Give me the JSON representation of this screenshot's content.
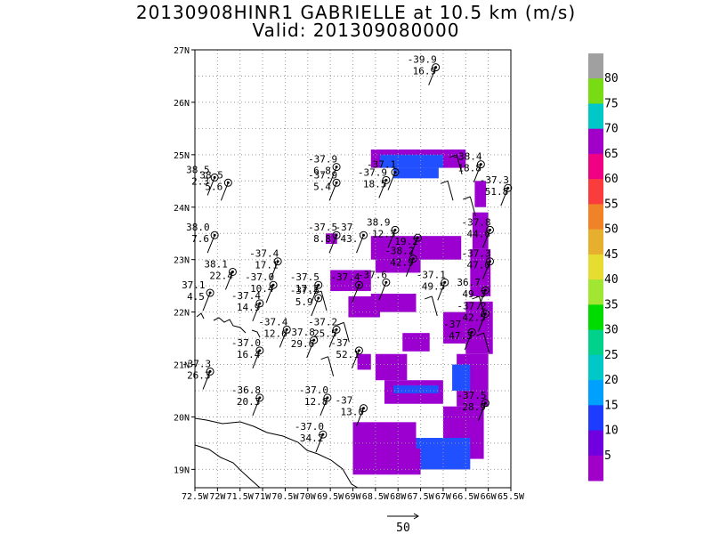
{
  "title": "20130908HINR1 GABRIELLE at 10.5 km (m/s)",
  "valid": "Valid: 201309080000",
  "lat_labels": [
    "27N",
    "26N",
    "25N",
    "24N",
    "23N",
    "22N",
    "21N",
    "20N",
    "19N"
  ],
  "lon_labels": [
    "72.5W",
    "72W",
    "71.5W",
    "71W",
    "70.5W",
    "70W",
    "69.5W",
    "69W",
    "68.5W",
    "68W",
    "67.5W",
    "67W",
    "66.5W",
    "66W",
    "65.5W"
  ],
  "colorbar": {
    "labels": [
      "5",
      "10",
      "15",
      "20",
      "25",
      "30",
      "35",
      "40",
      "45",
      "50",
      "55",
      "60",
      "65",
      "70",
      "75",
      "80"
    ],
    "colors": [
      "#a000c8",
      "#7000e0",
      "#1e3cff",
      "#00a0ff",
      "#00c8c8",
      "#00d28c",
      "#00dc00",
      "#a0e632",
      "#e6dc32",
      "#e6af2d",
      "#f08228",
      "#fa3c3c",
      "#f00082",
      "#a000c8",
      "#00c8c8",
      "#78dc14",
      "#a0a0a0"
    ]
  },
  "scale_vector_label": "50",
  "colors": {
    "purple": "#9b00d0",
    "blue": "#2050ff",
    "grid": "#9a9a9a",
    "coast": "#000000"
  },
  "stations": [
    {
      "t": "-39.9",
      "w": "16.9",
      "lon": -67.4,
      "lat": 26.7
    },
    {
      "t": "-37.9",
      "w": "6.8",
      "lon": -69.6,
      "lat": 24.8
    },
    {
      "t": "-37.9",
      "w": "5.4",
      "lon": -69.6,
      "lat": 24.5
    },
    {
      "t": "-37.1",
      "w": "",
      "lon": -68.3,
      "lat": 24.7
    },
    {
      "t": "-37.9",
      "w": "18.5",
      "lon": -68.5,
      "lat": 24.55
    },
    {
      "t": "-38.4",
      "w": "18.8",
      "lon": -66.4,
      "lat": 24.85
    },
    {
      "t": "-37.3",
      "w": "51.8",
      "lon": -65.8,
      "lat": 24.4
    },
    {
      "t": "38.5",
      "w": "2.3",
      "lon": -72.3,
      "lat": 24.6
    },
    {
      "t": "38.5",
      "w": "5.6",
      "lon": -72.0,
      "lat": 24.5
    },
    {
      "t": "38.0",
      "w": "7.6",
      "lon": -72.3,
      "lat": 23.5
    },
    {
      "t": "-37.5",
      "w": "8.8",
      "lon": -69.6,
      "lat": 23.5
    },
    {
      "t": "-37",
      "w": "43.",
      "lon": -69.0,
      "lat": 23.5
    },
    {
      "t": "38.9",
      "w": "12.3",
      "lon": -68.3,
      "lat": 23.6
    },
    {
      "t": "",
      "w": "19.2",
      "lon": -67.8,
      "lat": 23.45
    },
    {
      "t": "-37.8",
      "w": "44.6",
      "lon": -66.2,
      "lat": 23.6
    },
    {
      "t": "-37.4",
      "w": "17.1",
      "lon": -70.9,
      "lat": 23.0
    },
    {
      "t": "-38.2",
      "w": "42.9",
      "lon": -67.9,
      "lat": 23.05
    },
    {
      "t": "-37.3",
      "w": "47.0",
      "lon": -66.2,
      "lat": 23.0
    },
    {
      "t": "38.1",
      "w": "22.4",
      "lon": -71.9,
      "lat": 22.8
    },
    {
      "t": "-37.0",
      "w": "10.4",
      "lon": -71.0,
      "lat": 22.55
    },
    {
      "t": "-37.5",
      "w": "17.2",
      "lon": -70.0,
      "lat": 22.55
    },
    {
      "t": "-37.5",
      "w": "5.9",
      "lon": -70.0,
      "lat": 22.3
    },
    {
      "t": "-37.4",
      "w": "",
      "lon": -69.1,
      "lat": 22.55
    },
    {
      "t": "-37.6",
      "w": "",
      "lon": -68.5,
      "lat": 22.6
    },
    {
      "t": "-37.1",
      "w": "49.5",
      "lon": -67.2,
      "lat": 22.6
    },
    {
      "t": "36.7",
      "w": "49.3",
      "lon": -66.3,
      "lat": 22.45
    },
    {
      "t": "37.1",
      "w": "4.5",
      "lon": -72.4,
      "lat": 22.4
    },
    {
      "t": "-37.4",
      "w": "14.9",
      "lon": -71.3,
      "lat": 22.2
    },
    {
      "t": "-37.2",
      "w": "42.5",
      "lon": -66.3,
      "lat": 22.0
    },
    {
      "t": "-37.4",
      "w": "12.6",
      "lon": -70.7,
      "lat": 21.7
    },
    {
      "t": "-37.2",
      "w": "25.5",
      "lon": -69.6,
      "lat": 21.7
    },
    {
      "t": "-37.8",
      "w": "29.6",
      "lon": -70.1,
      "lat": 21.5
    },
    {
      "t": "-37",
      "w": "47.3",
      "lon": -66.6,
      "lat": 21.65
    },
    {
      "t": "-37.0",
      "w": "16.4",
      "lon": -71.3,
      "lat": 21.3
    },
    {
      "t": "-37",
      "w": "52.1",
      "lon": -69.1,
      "lat": 21.3
    },
    {
      "t": "-37.3",
      "w": "26.3",
      "lon": -72.4,
      "lat": 20.9
    },
    {
      "t": "-36.8",
      "w": "20.3",
      "lon": -71.3,
      "lat": 20.4
    },
    {
      "t": "-37.0",
      "w": "12.8",
      "lon": -69.8,
      "lat": 20.4
    },
    {
      "t": "-37",
      "w": "13.0",
      "lon": -69.0,
      "lat": 20.2
    },
    {
      "t": "-37.5",
      "w": "28.9",
      "lon": -66.3,
      "lat": 20.3
    },
    {
      "t": "-37.0",
      "w": "34.2",
      "lon": -69.9,
      "lat": 19.7
    }
  ],
  "wind_cells": [
    [
      -68.6,
      25.1,
      2.1,
      0.35,
      "p"
    ],
    [
      -68.4,
      25.0,
      1.4,
      0.25,
      "b"
    ],
    [
      -68.1,
      24.75,
      1.0,
      0.2,
      "b"
    ],
    [
      -66.3,
      24.5,
      0.25,
      0.5,
      "p"
    ],
    [
      -66.35,
      23.9,
      0.35,
      0.7,
      "p"
    ],
    [
      -66.4,
      23.2,
      0.45,
      0.9,
      "p"
    ],
    [
      -66.5,
      22.2,
      0.6,
      1.0,
      "p"
    ],
    [
      -66.7,
      21.2,
      0.7,
      1.0,
      "p"
    ],
    [
      -67.0,
      20.2,
      0.9,
      1.0,
      "p"
    ],
    [
      -67.6,
      19.6,
      1.2,
      0.6,
      "b"
    ],
    [
      -67.7,
      19.3,
      1.2,
      0.3,
      "b"
    ],
    [
      -69.0,
      19.9,
      1.4,
      0.6,
      "p"
    ],
    [
      -69.0,
      19.4,
      1.5,
      0.5,
      "p"
    ],
    [
      -68.3,
      20.7,
      1.3,
      0.45,
      "p"
    ],
    [
      -68.1,
      20.6,
      1.0,
      0.15,
      "b"
    ],
    [
      -68.5,
      21.2,
      0.7,
      0.5,
      "p"
    ],
    [
      -68.6,
      23.45,
      2.0,
      0.45,
      "p"
    ],
    [
      -68.5,
      23.1,
      1.0,
      0.35,
      "p"
    ],
    [
      -69.6,
      23.5,
      0.25,
      0.2,
      "p"
    ],
    [
      -69.5,
      22.8,
      0.9,
      0.4,
      "p"
    ],
    [
      -69.1,
      22.3,
      0.7,
      0.4,
      "p"
    ],
    [
      -68.6,
      22.35,
      1.0,
      0.35,
      "p"
    ],
    [
      -67.0,
      22.0,
      0.6,
      0.6,
      "p"
    ],
    [
      -67.9,
      21.6,
      0.6,
      0.35,
      "p"
    ],
    [
      -68.9,
      21.2,
      0.3,
      0.3,
      "p"
    ],
    [
      -66.8,
      21.0,
      0.4,
      0.5,
      "b"
    ]
  ],
  "barbs": [
    [
      -69.7,
      22.4
    ],
    [
      -69.2,
      21.8
    ],
    [
      -69.55,
      21.15
    ],
    [
      -67.25,
      22.3
    ],
    [
      -66.2,
      22.3
    ],
    [
      -66.1,
      21.6
    ],
    [
      -66.4,
      24.2
    ],
    [
      -66.9,
      24.5
    ],
    [
      -66.7,
      25.0
    ]
  ]
}
